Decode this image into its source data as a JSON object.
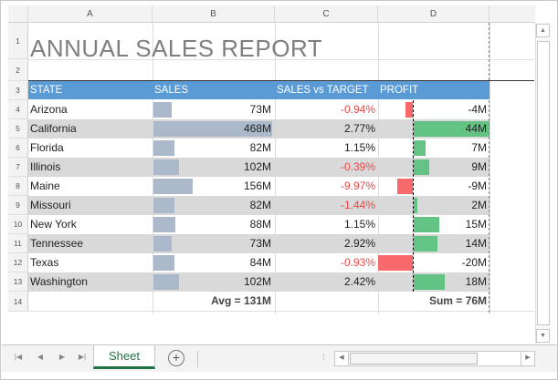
{
  "columns": [
    "A",
    "B",
    "C",
    "D"
  ],
  "row_numbers": [
    "1",
    "2",
    "3",
    "4",
    "5",
    "6",
    "7",
    "8",
    "9",
    "10",
    "11",
    "12",
    "13",
    "14"
  ],
  "title": "ANNUAL SALES REPORT",
  "headers": {
    "state": "STATE",
    "sales": "SALES",
    "target": "SALES vs TARGET",
    "profit": "PROFIT"
  },
  "rows": [
    {
      "state": "Arizona",
      "sales": "73M",
      "sales_value": 73,
      "target": "-0.94%",
      "profit": "-4M",
      "profit_value": -4
    },
    {
      "state": "California",
      "sales": "468M",
      "sales_value": 468,
      "target": "2.77%",
      "profit": "44M",
      "profit_value": 44
    },
    {
      "state": "Florida",
      "sales": "82M",
      "sales_value": 82,
      "target": "1.15%",
      "profit": "7M",
      "profit_value": 7
    },
    {
      "state": "Illinois",
      "sales": "102M",
      "sales_value": 102,
      "target": "-0.39%",
      "profit": "9M",
      "profit_value": 9
    },
    {
      "state": "Maine",
      "sales": "156M",
      "sales_value": 156,
      "target": "-9.97%",
      "profit": "-9M",
      "profit_value": -9
    },
    {
      "state": "Missouri",
      "sales": "82M",
      "sales_value": 82,
      "target": "-1.44%",
      "profit": "2M",
      "profit_value": 2
    },
    {
      "state": "New York",
      "sales": "88M",
      "sales_value": 88,
      "target": "1.15%",
      "profit": "15M",
      "profit_value": 15
    },
    {
      "state": "Tennessee",
      "sales": "73M",
      "sales_value": 73,
      "target": "2.92%",
      "profit": "14M",
      "profit_value": 14
    },
    {
      "state": "Texas",
      "sales": "84M",
      "sales_value": 84,
      "target": "-0.93%",
      "profit": "-20M",
      "profit_value": -20
    },
    {
      "state": "Washington",
      "sales": "102M",
      "sales_value": 102,
      "target": "2.42%",
      "profit": "18M",
      "profit_value": 18
    }
  ],
  "summary": {
    "sales": "Avg = 131M",
    "profit": "Sum = 76M"
  },
  "sheet_tab": "Sheet",
  "add_sheet": "+",
  "colors": {
    "header": "#5b9bd5",
    "band": "#d9d9d9",
    "sales_bar": "#acb9ca",
    "positive_bar": "#63c384",
    "negative_bar": "#f8696b",
    "negative_text": "#e84848",
    "tab_accent": "#217346"
  }
}
